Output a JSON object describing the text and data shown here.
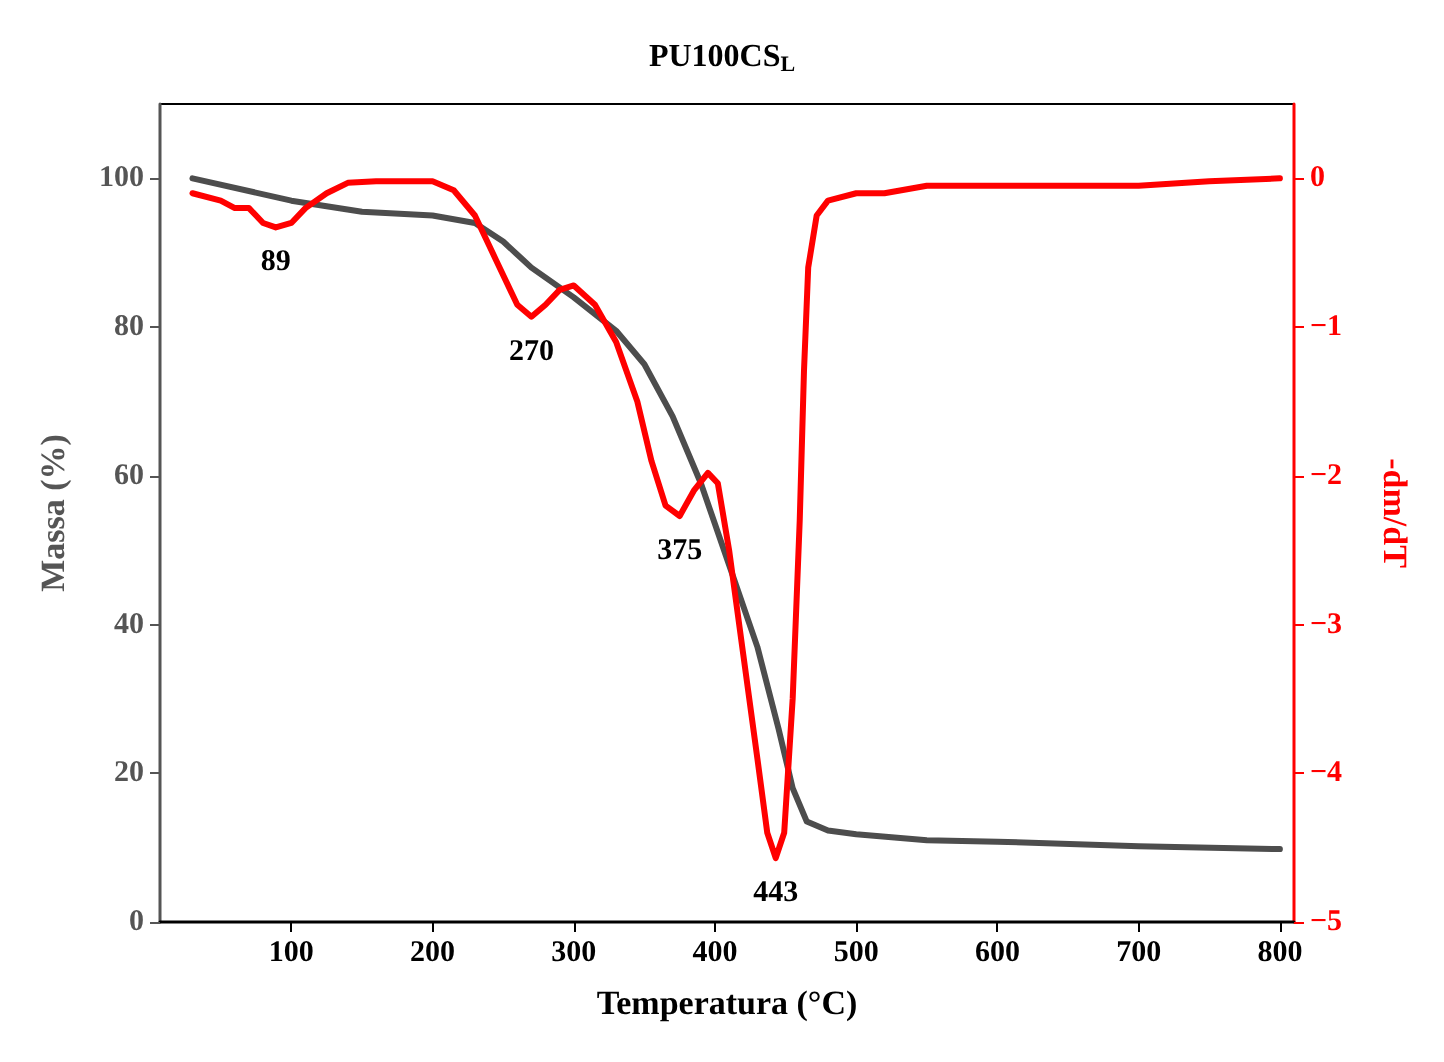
{
  "chart_data": {
    "type": "line",
    "title": "PU100CS$_{L}$",
    "xlabel": "Temperatura (°C)",
    "ylabel": "Massa (%)",
    "y2label": "-dm/dT",
    "xlim": [
      7,
      810
    ],
    "xticks": [
      100,
      200,
      300,
      400,
      500,
      600,
      700,
      800
    ],
    "ylim": [
      0,
      110
    ],
    "yticks": [
      0,
      20,
      40,
      60,
      80,
      100
    ],
    "y2lim": [
      -5,
      0.5
    ],
    "y2ticks": [
      {
        "value": -5,
        "label": "−5"
      },
      {
        "value": -4,
        "label": "−4"
      },
      {
        "value": -3,
        "label": "−3"
      },
      {
        "value": -2,
        "label": "−2"
      },
      {
        "value": -1,
        "label": "−1"
      },
      0
    ],
    "grid": false,
    "marker": "none",
    "line_style": "solid",
    "series": [
      {
        "color": "#4d4d4d",
        "x": [
          30,
          100,
          150,
          200,
          230,
          250,
          270,
          300,
          330,
          350,
          370,
          390,
          410,
          430,
          445,
          455,
          465,
          480,
          500,
          550,
          600,
          700,
          800
        ],
        "values": [
          100,
          97,
          95.5,
          95,
          94,
          91.5,
          88,
          84,
          79.5,
          75,
          68,
          59,
          48,
          37,
          26,
          18,
          13.5,
          12.3,
          11.8,
          11,
          10.8,
          10.2,
          9.8
        ]
      },
      {
        "color": "#ff0000",
        "axis": "y2",
        "x": [
          30,
          50,
          60,
          70,
          80,
          89,
          100,
          110,
          125,
          140,
          160,
          180,
          200,
          215,
          230,
          245,
          260,
          270,
          280,
          290,
          300,
          315,
          330,
          345,
          355,
          365,
          375,
          385,
          395,
          402,
          410,
          420,
          430,
          437,
          443,
          449,
          455,
          460,
          463,
          466,
          472,
          480,
          500,
          520,
          550,
          600,
          650,
          700,
          750,
          800
        ],
        "values": [
          -0.1,
          -0.15,
          -0.2,
          -0.2,
          -0.3,
          -0.33,
          -0.3,
          -0.2,
          -0.1,
          -0.03,
          -0.02,
          -0.02,
          -0.02,
          -0.08,
          -0.25,
          -0.55,
          -0.85,
          -0.93,
          -0.85,
          -0.75,
          -0.72,
          -0.85,
          -1.1,
          -1.5,
          -1.9,
          -2.2,
          -2.27,
          -2.1,
          -1.98,
          -2.05,
          -2.5,
          -3.2,
          -3.9,
          -4.4,
          -4.57,
          -4.4,
          -3.5,
          -2.3,
          -1.3,
          -0.6,
          -0.25,
          -0.15,
          -0.1,
          -0.1,
          -0.05,
          -0.05,
          -0.05,
          -0.05,
          -0.02,
          0
        ]
      }
    ],
    "annotations": [
      "89",
      "270",
      "375",
      "443"
    ]
  }
}
